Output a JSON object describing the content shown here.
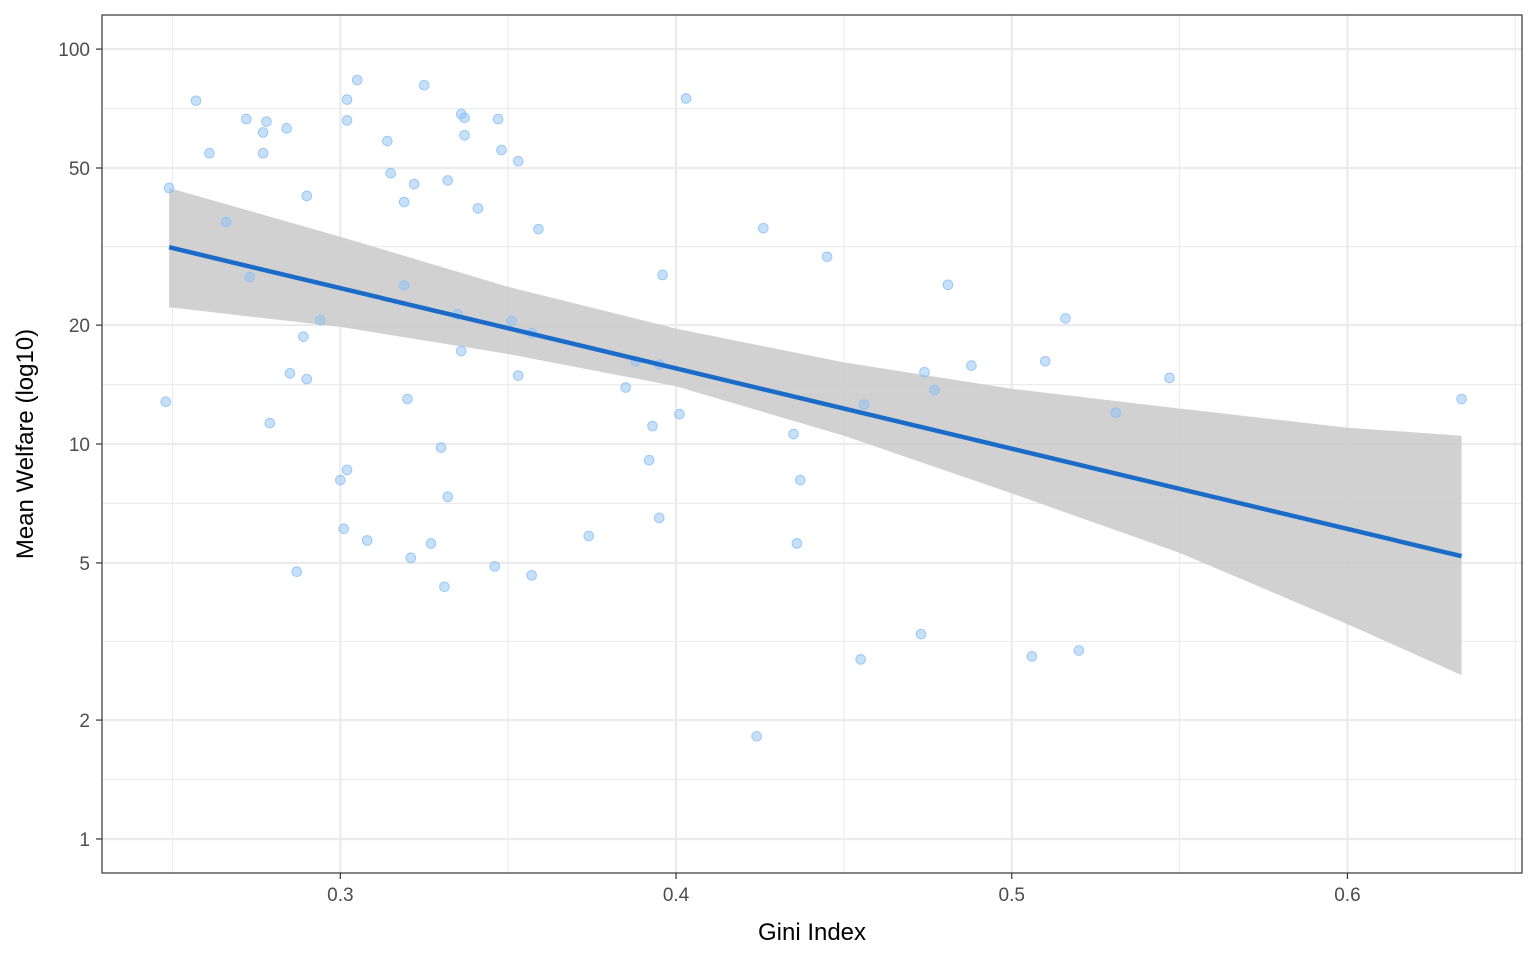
{
  "chart_data": {
    "type": "scatter",
    "title": "",
    "xlabel": "Gini Index",
    "ylabel": "Mean Welfare (log10)",
    "y_scale": "log10",
    "xlim": [
      0.229,
      0.652
    ],
    "ylim": [
      0.82,
      122
    ],
    "x_ticks": [
      0.3,
      0.4,
      0.5,
      0.6
    ],
    "x_tick_labels": [
      "0.3",
      "0.4",
      "0.5",
      "0.6"
    ],
    "y_ticks": [
      1,
      2,
      5,
      10,
      20,
      50,
      100
    ],
    "y_tick_labels": [
      "1",
      "2",
      "5",
      "10",
      "20",
      "50",
      "100"
    ],
    "grid": true,
    "legend": "none",
    "colors": {
      "points": "#90c2f5",
      "trend_line": "#1a6cc8",
      "confidence_band": "#cccccc",
      "grid": "#ebebeb",
      "panel_border": "#333333"
    },
    "points": [
      {
        "x": 0.248,
        "y": 12.8
      },
      {
        "x": 0.249,
        "y": 44.5
      },
      {
        "x": 0.257,
        "y": 74
      },
      {
        "x": 0.261,
        "y": 54.5
      },
      {
        "x": 0.266,
        "y": 36.5
      },
      {
        "x": 0.272,
        "y": 66.5
      },
      {
        "x": 0.273,
        "y": 26.5
      },
      {
        "x": 0.277,
        "y": 61.5
      },
      {
        "x": 0.277,
        "y": 54.5
      },
      {
        "x": 0.278,
        "y": 65.5
      },
      {
        "x": 0.279,
        "y": 11.3
      },
      {
        "x": 0.284,
        "y": 63
      },
      {
        "x": 0.285,
        "y": 15.1
      },
      {
        "x": 0.287,
        "y": 4.75
      },
      {
        "x": 0.289,
        "y": 18.7
      },
      {
        "x": 0.29,
        "y": 14.6
      },
      {
        "x": 0.29,
        "y": 42.5
      },
      {
        "x": 0.294,
        "y": 20.6
      },
      {
        "x": 0.3,
        "y": 8.1
      },
      {
        "x": 0.301,
        "y": 6.1
      },
      {
        "x": 0.302,
        "y": 8.6
      },
      {
        "x": 0.302,
        "y": 66
      },
      {
        "x": 0.302,
        "y": 74.5
      },
      {
        "x": 0.305,
        "y": 83.5
      },
      {
        "x": 0.308,
        "y": 5.7
      },
      {
        "x": 0.314,
        "y": 58.5
      },
      {
        "x": 0.315,
        "y": 48.5
      },
      {
        "x": 0.319,
        "y": 41
      },
      {
        "x": 0.319,
        "y": 25.2
      },
      {
        "x": 0.32,
        "y": 13
      },
      {
        "x": 0.321,
        "y": 5.15
      },
      {
        "x": 0.322,
        "y": 45.5
      },
      {
        "x": 0.325,
        "y": 81
      },
      {
        "x": 0.327,
        "y": 5.6
      },
      {
        "x": 0.33,
        "y": 9.8
      },
      {
        "x": 0.331,
        "y": 4.35
      },
      {
        "x": 0.332,
        "y": 7.35
      },
      {
        "x": 0.332,
        "y": 46.5
      },
      {
        "x": 0.335,
        "y": 21.3
      },
      {
        "x": 0.336,
        "y": 17.2
      },
      {
        "x": 0.336,
        "y": 68.5
      },
      {
        "x": 0.337,
        "y": 67
      },
      {
        "x": 0.337,
        "y": 60.5
      },
      {
        "x": 0.341,
        "y": 39.5
      },
      {
        "x": 0.346,
        "y": 4.9
      },
      {
        "x": 0.347,
        "y": 66.5
      },
      {
        "x": 0.348,
        "y": 55.5
      },
      {
        "x": 0.351,
        "y": 20.5
      },
      {
        "x": 0.353,
        "y": 52
      },
      {
        "x": 0.353,
        "y": 14.9
      },
      {
        "x": 0.357,
        "y": 4.65
      },
      {
        "x": 0.357,
        "y": 19.1
      },
      {
        "x": 0.359,
        "y": 35
      },
      {
        "x": 0.374,
        "y": 5.85
      },
      {
        "x": 0.385,
        "y": 13.9
      },
      {
        "x": 0.388,
        "y": 16.2
      },
      {
        "x": 0.392,
        "y": 9.1
      },
      {
        "x": 0.393,
        "y": 11.1
      },
      {
        "x": 0.395,
        "y": 15.9
      },
      {
        "x": 0.395,
        "y": 6.5
      },
      {
        "x": 0.396,
        "y": 26.8
      },
      {
        "x": 0.401,
        "y": 11.9
      },
      {
        "x": 0.403,
        "y": 75
      },
      {
        "x": 0.424,
        "y": 1.82
      },
      {
        "x": 0.426,
        "y": 35.2
      },
      {
        "x": 0.435,
        "y": 10.6
      },
      {
        "x": 0.436,
        "y": 5.6
      },
      {
        "x": 0.437,
        "y": 8.1
      },
      {
        "x": 0.445,
        "y": 29.8
      },
      {
        "x": 0.455,
        "y": 2.85
      },
      {
        "x": 0.456,
        "y": 12.6
      },
      {
        "x": 0.473,
        "y": 3.3
      },
      {
        "x": 0.474,
        "y": 15.2
      },
      {
        "x": 0.477,
        "y": 13.7
      },
      {
        "x": 0.481,
        "y": 25.3
      },
      {
        "x": 0.488,
        "y": 15.8
      },
      {
        "x": 0.506,
        "y": 2.9
      },
      {
        "x": 0.51,
        "y": 16.2
      },
      {
        "x": 0.516,
        "y": 20.8
      },
      {
        "x": 0.52,
        "y": 3.0
      },
      {
        "x": 0.531,
        "y": 12
      },
      {
        "x": 0.547,
        "y": 14.7
      },
      {
        "x": 0.634,
        "y": 13
      }
    ],
    "trend_line": [
      {
        "x": 0.249,
        "y": 31.5
      },
      {
        "x": 0.634,
        "y": 5.2
      }
    ],
    "confidence_band": {
      "x": [
        0.249,
        0.3,
        0.35,
        0.4,
        0.45,
        0.5,
        0.55,
        0.6,
        0.634
      ],
      "lower": [
        22.2,
        19.8,
        16.9,
        14.0,
        10.5,
        7.5,
        5.3,
        3.5,
        2.6
      ],
      "upper": [
        44.5,
        33.5,
        25.0,
        19.6,
        16.1,
        13.8,
        12.3,
        11.0,
        10.5
      ]
    }
  }
}
